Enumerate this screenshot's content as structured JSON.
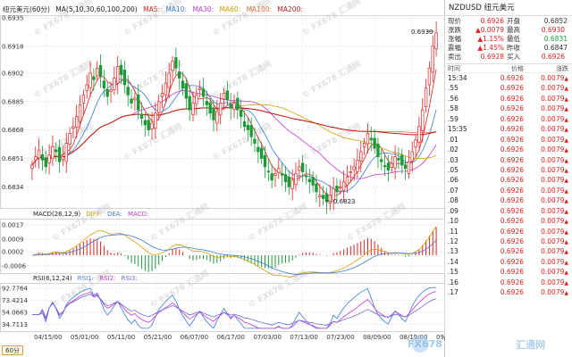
{
  "indicators": {
    "main_title": "纽元美元(60分)",
    "ma_label": "MA(5,10,30,60,100,200)",
    "ma5": "MA5:",
    "ma10": "MA10:",
    "ma30": "MA30:",
    "ma60": "MA60:",
    "ma100": "MA100:",
    "ma200": "MA200:",
    "macd_label": "MACD(26,12,9)",
    "diff": "DIFF:",
    "dea": "DEA:",
    "macd": "MACD:",
    "rsi_label": "RSI(6,12,24)",
    "rsi1": "RSI1:",
    "rsi2": "RSI2:",
    "rsi3": "RSI3:"
  },
  "main_axis": {
    "ticks": [
      "0.6935",
      "0.6918",
      "0.6902",
      "0.6885",
      "0.6868",
      "0.6851",
      "0.6834"
    ]
  },
  "macd_axis": {
    "ticks": [
      "0.0017",
      "0.0009",
      "0.0002",
      "-0.0006"
    ]
  },
  "rsi_axis": {
    "ticks": [
      "92.7764",
      "73.4214",
      "54.0663",
      "34.7113"
    ]
  },
  "x_axis": {
    "labels": [
      "04/15/00",
      "05/01/00",
      "05/11/00",
      "05/21/00",
      "06/07/00",
      "06/17/00",
      "07/03/00",
      "07/13/00",
      "07/23/00",
      "08/09/00",
      "08/19/00",
      "09/05/00"
    ]
  },
  "annotations": {
    "high": "0.6930",
    "low": "0.6823"
  },
  "watermark": "© FX678 汇通网",
  "timeframe_tab": "60分",
  "brand": {
    "logo": "FX678",
    "cn": "汇通网"
  },
  "colors": {
    "up": "#e0231f",
    "down": "#1d9a3a",
    "ma5": "#e0231f",
    "ma10": "#3c7bd8",
    "ma30": "#c23ad1",
    "ma60": "#d0a000",
    "ma100": "#e07030",
    "ma200": "#c01818"
  },
  "chart_data": {
    "type": "candlestick",
    "title": "纽元美元(60分)",
    "ylim": [
      0.6823,
      0.6935
    ],
    "high_marker": 0.693,
    "low_marker": 0.6823,
    "closes": [
      0.6847,
      0.6852,
      0.6856,
      0.685,
      0.6846,
      0.6853,
      0.6858,
      0.6855,
      0.6849,
      0.6852,
      0.686,
      0.6866,
      0.687,
      0.6876,
      0.6883,
      0.6889,
      0.6895,
      0.6902,
      0.6898,
      0.6905,
      0.69,
      0.6893,
      0.6888,
      0.6892,
      0.6899,
      0.6906,
      0.6901,
      0.6895,
      0.6889,
      0.6884,
      0.6887,
      0.688,
      0.6875,
      0.6871,
      0.6868,
      0.6872,
      0.6878,
      0.6885,
      0.689,
      0.6896,
      0.6902,
      0.6909,
      0.6905,
      0.6899,
      0.6893,
      0.6887,
      0.688,
      0.6884,
      0.6889,
      0.6893,
      0.6888,
      0.6883,
      0.6878,
      0.6874,
      0.6879,
      0.6884,
      0.689,
      0.6886,
      0.6881,
      0.6884,
      0.688,
      0.6876,
      0.687,
      0.6868,
      0.6864,
      0.686,
      0.6855,
      0.6851,
      0.6846,
      0.6843,
      0.6838,
      0.6842,
      0.6845,
      0.6841,
      0.6837,
      0.6834,
      0.6838,
      0.6842,
      0.6846,
      0.6843,
      0.684,
      0.6837,
      0.6835,
      0.6831,
      0.6829,
      0.6827,
      0.6825,
      0.6829,
      0.6833,
      0.6831,
      0.6834,
      0.6837,
      0.684,
      0.6843,
      0.6846,
      0.685,
      0.6855,
      0.686,
      0.6866,
      0.6862,
      0.6857,
      0.6852,
      0.6849,
      0.6846,
      0.6844,
      0.6848,
      0.6852,
      0.685,
      0.6847,
      0.6845,
      0.6849,
      0.6855,
      0.6862,
      0.687,
      0.688,
      0.6893,
      0.6905,
      0.6918,
      0.6926
    ]
  },
  "side": {
    "title": "NZDUSD 纽元美元",
    "quote": [
      {
        "l1": "现价",
        "v1": "0.6926",
        "l2": "开盘",
        "v2": "0.6852",
        "c1": "red",
        "c2": "dark"
      },
      {
        "l1": "涨跌",
        "v1": "▲0.0079",
        "l2": "最高",
        "v2": "0.6930",
        "c1": "red",
        "c2": "red"
      },
      {
        "l1": "涨幅",
        "v1": "▲1.15%",
        "l2": "最低",
        "v2": "0.6831",
        "c1": "red",
        "c2": "green"
      },
      {
        "l1": "震幅",
        "v1": "▲1.45%",
        "l2": "昨收",
        "v2": "0.6847",
        "c1": "red",
        "c2": "dark"
      },
      {
        "l1": "卖出",
        "v1": "0.6928",
        "l2": "买入",
        "v2": "0.6926",
        "c1": "red",
        "c2": "red"
      }
    ],
    "tick_headers": [
      "时间",
      "价格",
      "涨跌"
    ],
    "ticks": [
      {
        "t": "15:34",
        "p": "0.6926",
        "c": "0.0079"
      },
      {
        "t": ".55",
        "p": "0.6926",
        "c": "0.0079"
      },
      {
        "t": ".56",
        "p": "0.6926",
        "c": "0.0079"
      },
      {
        "t": ".58",
        "p": "0.6926",
        "c": "0.0079"
      },
      {
        "t": ".59",
        "p": "0.6926",
        "c": "0.0079"
      },
      {
        "t": "15:35",
        "p": "0.6926",
        "c": "0.0079"
      },
      {
        "t": ".01",
        "p": "0.6926",
        "c": "0.0079"
      },
      {
        "t": ".02",
        "p": "0.6926",
        "c": "0.0079"
      },
      {
        "t": ".03",
        "p": "0.6926",
        "c": "0.0079"
      },
      {
        "t": ".05",
        "p": "0.6926",
        "c": "0.0079"
      },
      {
        "t": ".06",
        "p": "0.6926",
        "c": "0.0079"
      },
      {
        "t": ".07",
        "p": "0.6926",
        "c": "0.0079"
      },
      {
        "t": ".08",
        "p": "0.6926",
        "c": "0.0079"
      },
      {
        "t": ".09",
        "p": "0.6926",
        "c": "0.0079"
      },
      {
        "t": ".10",
        "p": "0.6926",
        "c": "0.0079"
      },
      {
        "t": ".11",
        "p": "0.6926",
        "c": "0.0079"
      },
      {
        "t": ".12",
        "p": "0.6926",
        "c": "0.0079"
      },
      {
        "t": ".13",
        "p": "0.6926",
        "c": "0.0079"
      },
      {
        "t": ".14",
        "p": "0.6926",
        "c": "0.0079"
      },
      {
        "t": ".15",
        "p": "0.6926",
        "c": "0.0079"
      },
      {
        "t": ".16",
        "p": "0.6926",
        "c": "0.0079"
      },
      {
        "t": ".17",
        "p": "0.6926",
        "c": "0.0079"
      }
    ]
  }
}
